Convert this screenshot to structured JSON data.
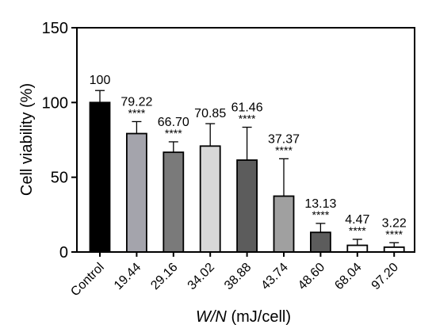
{
  "chart_data": {
    "type": "bar",
    "categories": [
      "Control",
      "19.44",
      "29.16",
      "34.02",
      "38.88",
      "43.74",
      "48.60",
      "68.04",
      "97.20"
    ],
    "values": [
      100,
      79.22,
      66.7,
      70.85,
      61.46,
      37.37,
      13.13,
      4.47,
      3.22
    ],
    "value_labels": [
      "100",
      "79.22",
      "66.70",
      "70.85",
      "61.46",
      "37.37",
      "13.13",
      "4.47",
      "3.22"
    ],
    "error_upper": [
      8,
      8,
      7,
      15,
      22,
      25,
      6,
      4,
      3
    ],
    "significance": [
      "",
      "****",
      "****",
      "",
      "****",
      "****",
      "****",
      "****",
      "****"
    ],
    "bar_colors": [
      "#000000",
      "#a4a4ac",
      "#7a7a7a",
      "#d8d8d8",
      "#5c5c5c",
      "#a0a0a0",
      "#5c5c5c",
      "#ffffff",
      "#ffffff"
    ],
    "ylabel": "Cell viability (%)",
    "xlabel_italic": "W/N",
    "xlabel_unit": " (mJ/cell)",
    "ylim": [
      0,
      150
    ],
    "yticks": [
      0,
      50,
      100,
      150
    ],
    "grid": false
  }
}
